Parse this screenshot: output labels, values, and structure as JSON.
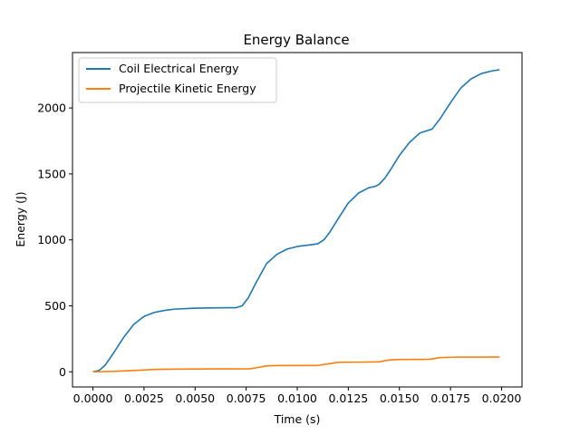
{
  "chart_data": {
    "type": "line",
    "title": "Energy Balance",
    "xlabel": "Time (s)",
    "ylabel": "Energy (J)",
    "xlim": [
      -0.001,
      0.021
    ],
    "ylim": [
      -115,
      2420
    ],
    "xticks": [
      0.0,
      0.0025,
      0.005,
      0.0075,
      0.01,
      0.0125,
      0.015,
      0.0175,
      0.02
    ],
    "xtick_labels": [
      "0.0000",
      "0.0025",
      "0.0050",
      "0.0075",
      "0.0100",
      "0.0125",
      "0.0150",
      "0.0175",
      "0.0200"
    ],
    "yticks": [
      0,
      500,
      1000,
      1500,
      2000
    ],
    "ytick_labels": [
      "0",
      "500",
      "1000",
      "1500",
      "2000"
    ],
    "grid": false,
    "legend_position": "top-left",
    "series": [
      {
        "name": "Coil Electrical Energy",
        "color": "#1f77b4",
        "x": [
          0.0,
          0.0003,
          0.0006,
          0.001,
          0.0015,
          0.002,
          0.0025,
          0.003,
          0.0035,
          0.004,
          0.005,
          0.006,
          0.007,
          0.0073,
          0.0076,
          0.008,
          0.0085,
          0.009,
          0.0095,
          0.01,
          0.0105,
          0.011,
          0.0113,
          0.0116,
          0.012,
          0.0125,
          0.013,
          0.0135,
          0.0138,
          0.014,
          0.0143,
          0.0146,
          0.015,
          0.0155,
          0.016,
          0.0163,
          0.0166,
          0.017,
          0.0175,
          0.018,
          0.0185,
          0.019,
          0.0195,
          0.0199
        ],
        "y": [
          0,
          10,
          50,
          140,
          260,
          360,
          420,
          450,
          465,
          475,
          482,
          485,
          486,
          500,
          560,
          680,
          820,
          890,
          930,
          950,
          960,
          970,
          1000,
          1060,
          1160,
          1280,
          1355,
          1395,
          1405,
          1420,
          1470,
          1540,
          1640,
          1740,
          1810,
          1825,
          1840,
          1920,
          2040,
          2150,
          2220,
          2260,
          2280,
          2290
        ]
      },
      {
        "name": "Projectile Kinetic Energy",
        "color": "#ff7f0e",
        "x": [
          0.0,
          0.001,
          0.002,
          0.003,
          0.004,
          0.005,
          0.006,
          0.007,
          0.0077,
          0.008,
          0.0085,
          0.009,
          0.01,
          0.011,
          0.0115,
          0.012,
          0.013,
          0.014,
          0.0145,
          0.015,
          0.016,
          0.0165,
          0.017,
          0.0175,
          0.018,
          0.019,
          0.0199
        ],
        "y": [
          0,
          3,
          10,
          18,
          20,
          21,
          22,
          22,
          23,
          30,
          45,
          47,
          48,
          48,
          60,
          72,
          73,
          75,
          90,
          93,
          94,
          95,
          108,
          110,
          111,
          111,
          112
        ]
      }
    ]
  }
}
